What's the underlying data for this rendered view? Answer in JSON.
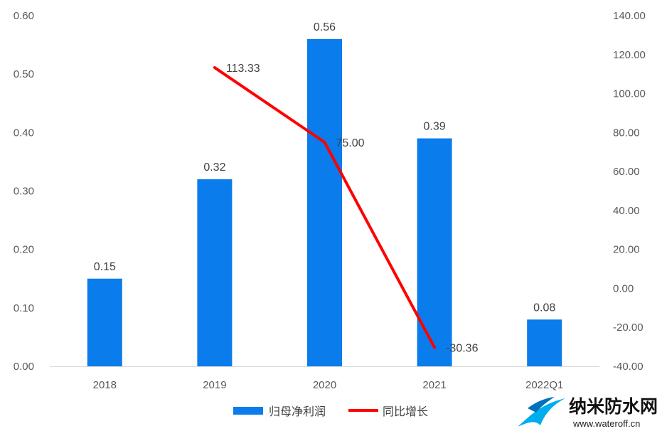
{
  "chart_data": {
    "type": "bar",
    "categories": [
      "2018",
      "2019",
      "2020",
      "2021",
      "2022Q1"
    ],
    "series": [
      {
        "name": "归母净利润",
        "kind": "bar",
        "axis": "left",
        "values": [
          0.15,
          0.32,
          0.56,
          0.39,
          0.08
        ],
        "color": "#0A7CEB"
      },
      {
        "name": "同比增长",
        "kind": "line",
        "axis": "right",
        "values": [
          null,
          113.33,
          75.0,
          -30.36,
          null
        ],
        "color": "#FF0000"
      }
    ],
    "bar_labels": [
      "0.15",
      "0.32",
      "0.56",
      "0.39",
      "0.08"
    ],
    "line_labels": [
      "113.33",
      "75.00",
      "-30.36"
    ],
    "y_left": {
      "min": 0,
      "max": 0.6,
      "step": 0.1,
      "ticks": [
        "0.00",
        "0.10",
        "0.20",
        "0.30",
        "0.40",
        "0.50",
        "0.60"
      ]
    },
    "y_right": {
      "min": -40,
      "max": 140,
      "step": 20,
      "ticks": [
        "-40.00",
        "-20.00",
        "0.00",
        "20.00",
        "40.00",
        "60.00",
        "80.00",
        "100.00",
        "120.00",
        "140.00"
      ]
    },
    "legend_placement": "bottom",
    "grid": false
  },
  "watermark": {
    "name": "纳米防水网",
    "url": "www.wateroff.cn",
    "colors": [
      "#00AEEF",
      "#0072BC"
    ]
  }
}
